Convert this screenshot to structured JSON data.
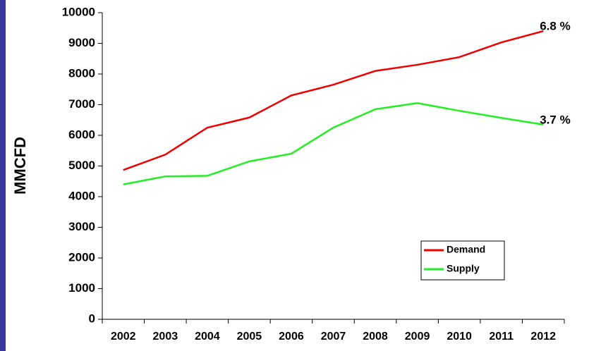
{
  "chart_data": {
    "type": "line",
    "y_label": "MMCFD",
    "categories": [
      "2002",
      "2003",
      "2004",
      "2005",
      "2006",
      "2007",
      "2008",
      "2009",
      "2010",
      "2011",
      "2012"
    ],
    "series": [
      {
        "name": "Demand",
        "color": "#ee0000",
        "values": [
          4870,
          5370,
          6250,
          6580,
          7300,
          7650,
          8100,
          8300,
          8550,
          9030,
          9400
        ]
      },
      {
        "name": "Supply",
        "color": "#22ee22",
        "values": [
          4400,
          4660,
          4680,
          5150,
          5400,
          6250,
          6850,
          7050,
          6800,
          6570,
          6350
        ]
      }
    ],
    "annotations": [
      "6.8 %",
      "3.7 %"
    ],
    "ylim": [
      0,
      10000
    ],
    "yticks": [
      0,
      1000,
      2000,
      3000,
      4000,
      5000,
      6000,
      7000,
      8000,
      9000,
      10000
    ],
    "legend": "lower right"
  }
}
